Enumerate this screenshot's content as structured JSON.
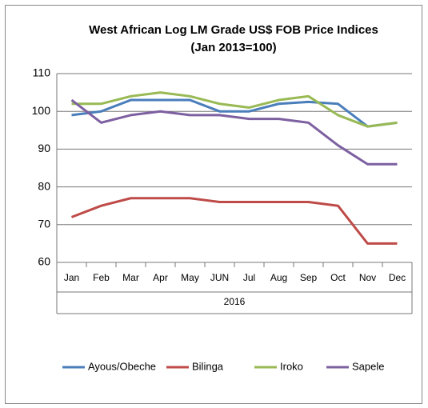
{
  "chart_data": {
    "type": "line",
    "title": "West African Log LM Grade US$ FOB Price Indices",
    "subtitle": "(Jan 2013=100)",
    "x_label": "2016",
    "categories": [
      "Jan",
      "Feb",
      "Mar",
      "Apr",
      "May",
      "JUN",
      "Jul",
      "Aug",
      "Sep",
      "Oct",
      "Nov",
      "Dec"
    ],
    "series": [
      {
        "name": "Ayous/Obeche",
        "color": "#4a7ebb",
        "values": [
          99,
          100,
          103,
          103,
          103,
          100,
          100,
          102,
          102.5,
          102,
          96,
          97
        ]
      },
      {
        "name": "Bilinga",
        "color": "#be4b48",
        "values": [
          72,
          75,
          77,
          77,
          77,
          76,
          76,
          76,
          76,
          75,
          65,
          65
        ]
      },
      {
        "name": "Iroko",
        "color": "#98b954",
        "values": [
          102,
          102,
          104,
          105,
          104,
          102,
          101,
          103,
          104,
          99,
          96,
          97
        ]
      },
      {
        "name": "Sapele",
        "color": "#7d60a0",
        "values": [
          103,
          97,
          99,
          100,
          99,
          99,
          98,
          98,
          97,
          91,
          86,
          86
        ]
      }
    ],
    "ylim": [
      60,
      110
    ],
    "yticks": [
      60,
      70,
      80,
      90,
      100,
      110
    ],
    "grid": true,
    "legend": "bottom"
  }
}
